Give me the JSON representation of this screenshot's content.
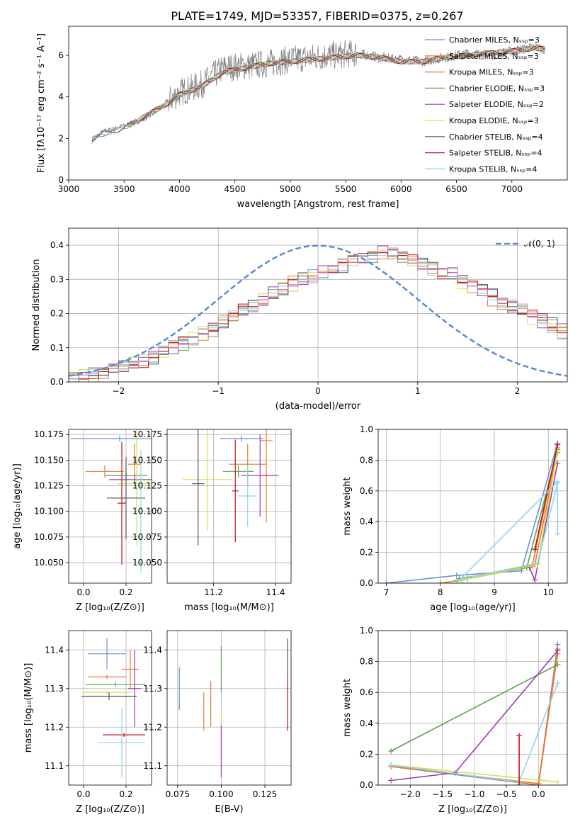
{
  "figure": {
    "title": "PLATE=1749, MJD=53357, FIBERID=0375, z=0.267"
  },
  "colors": [
    "#6b8fd6",
    "#f07a2a",
    "#e0793a",
    "#5aa34e",
    "#a03bb3",
    "#cbe64f",
    "#555555",
    "#c0141c",
    "#8fd6e6",
    "#e684bd"
  ],
  "chart_data": [
    {
      "id": "spectrum",
      "type": "line",
      "xlabel": "wavelength [Angstrom, rest frame]",
      "ylabel": "Flux [fλ10⁻¹⁷ erg cm⁻² s⁻¹ A⁻¹]",
      "xlim": [
        3000,
        7500
      ],
      "ylim": [
        0,
        7.4
      ],
      "xticks": [
        "3000",
        "3500",
        "4000",
        "4500",
        "5000",
        "5500",
        "6000",
        "6500",
        "7000"
      ],
      "yticks": [
        "0",
        "2",
        "4",
        "6"
      ],
      "grid": false,
      "legend_position": "top-right",
      "legend": [
        "Chabrier MILES, Nₛₛₚ=3",
        "Salpeter MILES, Nₛₛₚ=3",
        "Kroupa MILES, Nₛₛₚ=3",
        "Chabrier ELODIE, Nₛₛₚ=3",
        "Salpeter ELODIE, Nₛₛₚ=2",
        "Kroupa ELODIE, Nₛₛₚ=3",
        "Chabrier STELIB, Nₛₛₚ=4",
        "Salpeter STELIB, Nₛₛₚ=4",
        "Kroupa STELIB, Nₛₛₚ=4"
      ],
      "data_curve": {
        "x": [
          3210,
          3300,
          3500,
          3700,
          3900,
          4000,
          4200,
          4400,
          4600,
          4800,
          5000,
          5200,
          5400,
          5600,
          5800,
          6000,
          6200,
          6400,
          6600,
          6800,
          7000,
          7200,
          7300
        ],
        "y": [
          1.9,
          2.3,
          2.6,
          3.0,
          3.8,
          4.2,
          4.6,
          5.4,
          5.5,
          5.6,
          5.8,
          5.9,
          6.0,
          6.1,
          5.9,
          5.8,
          5.7,
          5.9,
          6.1,
          6.0,
          6.2,
          6.4,
          6.3
        ]
      },
      "model_curve": {
        "x": [
          3210,
          3300,
          3500,
          3700,
          3900,
          4000,
          4200,
          4400,
          4600,
          4800,
          5000,
          5200,
          5400,
          5600,
          5800,
          6000,
          6200,
          6400,
          6600,
          6800,
          7000,
          7200,
          7300
        ],
        "y": [
          1.95,
          2.2,
          2.5,
          3.1,
          3.7,
          4.1,
          4.5,
          5.2,
          5.4,
          5.6,
          5.7,
          5.8,
          5.9,
          6.0,
          5.9,
          5.7,
          5.7,
          5.9,
          6.0,
          6.1,
          6.2,
          6.35,
          6.3
        ]
      }
    },
    {
      "id": "residual-histogram",
      "type": "line",
      "xlabel": "(data-model)/error",
      "ylabel": "Normed distribution",
      "xlim": [
        -2.5,
        2.5
      ],
      "ylim": [
        0,
        0.45
      ],
      "xticks": [
        "−2",
        "−1",
        "0",
        "1",
        "2"
      ],
      "yticks": [
        "0.0",
        "0.1",
        "0.2",
        "0.3",
        "0.4"
      ],
      "grid": true,
      "legend_position": "top-right",
      "legend": [
        "𝒩(0, 1)"
      ],
      "bin_width": 0.1,
      "bin_start": -2.5,
      "series": [
        {
          "values": [
            0.02,
            0.02,
            0.03,
            0.03,
            0.04,
            0.05,
            0.05,
            0.06,
            0.07,
            0.09,
            0.1,
            0.11,
            0.12,
            0.14,
            0.15,
            0.17,
            0.19,
            0.2,
            0.22,
            0.24,
            0.25,
            0.27,
            0.28,
            0.3,
            0.31,
            0.32,
            0.33,
            0.34,
            0.35,
            0.36,
            0.37,
            0.38,
            0.38,
            0.37,
            0.36,
            0.35,
            0.34,
            0.33,
            0.32,
            0.3,
            0.28,
            0.27,
            0.26,
            0.24,
            0.22,
            0.21,
            0.2,
            0.18,
            0.17,
            0.16
          ]
        },
        {
          "values": [
            0.02,
            0.02,
            0.02,
            0.03,
            0.04,
            0.04,
            0.05,
            0.06,
            0.08,
            0.09,
            0.1,
            0.12,
            0.13,
            0.14,
            0.16,
            0.17,
            0.18,
            0.21,
            0.22,
            0.23,
            0.26,
            0.27,
            0.29,
            0.3,
            0.31,
            0.33,
            0.34,
            0.35,
            0.36,
            0.37,
            0.38,
            0.39,
            0.38,
            0.37,
            0.36,
            0.34,
            0.33,
            0.32,
            0.31,
            0.29,
            0.28,
            0.26,
            0.25,
            0.23,
            0.22,
            0.2,
            0.19,
            0.17,
            0.16,
            0.15
          ]
        },
        {
          "values": [
            0.02,
            0.03,
            0.03,
            0.03,
            0.04,
            0.05,
            0.06,
            0.07,
            0.08,
            0.09,
            0.11,
            0.12,
            0.13,
            0.15,
            0.16,
            0.18,
            0.19,
            0.21,
            0.22,
            0.24,
            0.25,
            0.27,
            0.28,
            0.3,
            0.31,
            0.32,
            0.33,
            0.35,
            0.36,
            0.37,
            0.37,
            0.38,
            0.37,
            0.37,
            0.35,
            0.35,
            0.33,
            0.32,
            0.3,
            0.29,
            0.27,
            0.26,
            0.24,
            0.23,
            0.21,
            0.2,
            0.18,
            0.17,
            0.15,
            0.14
          ]
        }
      ]
    },
    {
      "id": "age-vs-z",
      "type": "scatter",
      "xlabel": "Z [log₁₀(Z/Z⊙)]",
      "ylabel": "age  [log₁₀(age/yr)]",
      "xlim": [
        -0.07,
        0.32
      ],
      "ylim": [
        10.03,
        10.18
      ],
      "xticks": [
        "0.0",
        "0.2"
      ],
      "yticks": [
        "10.050",
        "10.075",
        "10.100",
        "10.125",
        "10.150",
        "10.175"
      ],
      "grid": true,
      "points": [
        {
          "x": 0.17,
          "y": 10.171,
          "xerr": 0.23,
          "yerr": 0.003
        },
        {
          "x": 0.24,
          "y": 10.146,
          "xerr": 0.03,
          "yerr": 0.02
        },
        {
          "x": 0.1,
          "y": 10.139,
          "xerr": 0.09,
          "yerr": 0.006
        },
        {
          "x": 0.2,
          "y": 10.135,
          "xerr": 0.1,
          "yerr": 0.006
        },
        {
          "x": 0.24,
          "y": 10.131,
          "xerr": 0.12,
          "yerr": 0.005
        },
        {
          "x": 0.25,
          "y": 10.127,
          "xerr": 0.09,
          "yerr": 0.06
        },
        {
          "x": 0.2,
          "y": 10.113,
          "xerr": 0.09,
          "yerr": 0.04
        },
        {
          "x": 0.18,
          "y": 10.108,
          "xerr": 0.02,
          "yerr": 0.06
        },
        {
          "x": 0.27,
          "y": 10.1,
          "xerr": 0.02,
          "yerr": 0.06
        }
      ]
    },
    {
      "id": "age-vs-mass",
      "type": "scatter",
      "xlabel": "mass [log₁₀(M/M⊙)]",
      "ylabel": "",
      "xlim": [
        11.05,
        11.45
      ],
      "ylim": [
        10.03,
        10.18
      ],
      "xticks": [
        "11.2",
        "11.4"
      ],
      "yticks": [
        "10.050",
        "10.075",
        "10.100",
        "10.125",
        "10.150",
        "10.175"
      ],
      "grid": true,
      "points": [
        {
          "x": 11.29,
          "y": 10.171,
          "xerr": 0.07,
          "yerr": 0.003
        },
        {
          "x": 11.37,
          "y": 10.169,
          "xerr": 0.02,
          "yerr": 0.08
        },
        {
          "x": 11.31,
          "y": 10.146,
          "xerr": 0.06,
          "yerr": 0.02
        },
        {
          "x": 11.28,
          "y": 10.139,
          "xerr": 0.05,
          "yerr": 0.006
        },
        {
          "x": 11.35,
          "y": 10.135,
          "xerr": 0.06,
          "yerr": 0.04
        },
        {
          "x": 11.18,
          "y": 10.131,
          "xerr": 0.08,
          "yerr": 0.05
        },
        {
          "x": 11.15,
          "y": 10.127,
          "xerr": 0.02,
          "yerr": 0.06
        },
        {
          "x": 11.27,
          "y": 10.12,
          "xerr": 0.01,
          "yerr": 0.05
        },
        {
          "x": 11.31,
          "y": 10.115,
          "xerr": 0.03,
          "yerr": 0.03
        }
      ]
    },
    {
      "id": "mass-weight-vs-age",
      "type": "line",
      "xlabel": "age  [log₁₀(age/yr)]",
      "ylabel": "mass weight",
      "xlim": [
        6.85,
        10.35
      ],
      "ylim": [
        0,
        1
      ],
      "xticks": [
        "7",
        "8",
        "9",
        "10"
      ],
      "yticks": [
        "0.0",
        "0.2",
        "0.4",
        "0.6",
        "0.8",
        "1.0"
      ],
      "grid": true,
      "series": [
        {
          "x": [
            7.0,
            8.3,
            9.5,
            10.17
          ],
          "y": [
            0.0,
            0.05,
            0.08,
            0.91
          ]
        },
        {
          "x": [
            8.0,
            8.4,
            9.7,
            10.17
          ],
          "y": [
            0.0,
            0.02,
            0.11,
            0.88
          ]
        },
        {
          "x": [
            8.3,
            8.5,
            9.75,
            10.17
          ],
          "y": [
            0.02,
            0.03,
            0.12,
            0.85
          ]
        },
        {
          "x": [
            8.35,
            9.6,
            10.17
          ],
          "y": [
            0.03,
            0.1,
            0.87
          ]
        },
        {
          "x": [
            9.65,
            9.75,
            10.17
          ],
          "y": [
            0.1,
            0.02,
            0.78
          ]
        },
        {
          "x": [
            8.4,
            9.8,
            10.17
          ],
          "y": [
            0.02,
            0.12,
            0.86
          ]
        },
        {
          "x": [
            8.3,
            9.8,
            10.17
          ],
          "y": [
            0.02,
            0.13,
            0.65
          ]
        },
        {
          "x": [
            9.75,
            10.17
          ],
          "y": [
            0.22,
            0.9
          ]
        },
        {
          "x": [
            8.3,
            10.17,
            10.17
          ],
          "y": [
            0.0,
            0.66,
            0.32
          ]
        }
      ]
    },
    {
      "id": "mass-vs-z",
      "type": "scatter",
      "xlabel": "Z [log₁₀(Z/Z⊙)]",
      "ylabel": "mass [log₁₀(M/M⊙)]",
      "xlim": [
        -0.07,
        0.32
      ],
      "ylim": [
        11.05,
        11.45
      ],
      "xticks": [
        "0.0",
        "0.2"
      ],
      "yticks": [
        "11.1",
        "11.2",
        "11.3",
        "11.4"
      ],
      "grid": true,
      "points": [
        {
          "x": 0.11,
          "y": 11.39,
          "xerr": 0.09,
          "yerr": 0.04
        },
        {
          "x": 0.22,
          "y": 11.35,
          "xerr": 0.04,
          "yerr": 0.05
        },
        {
          "x": 0.11,
          "y": 11.33,
          "xerr": 0.09,
          "yerr": 0.005
        },
        {
          "x": 0.15,
          "y": 11.31,
          "xerr": 0.14,
          "yerr": 0.005
        },
        {
          "x": 0.24,
          "y": 11.3,
          "xerr": 0.03,
          "yerr": 0.1
        },
        {
          "x": 0.11,
          "y": 11.29,
          "xerr": 0.12,
          "yerr": 0.005
        },
        {
          "x": 0.12,
          "y": 11.28,
          "xerr": 0.13,
          "yerr": 0.01
        },
        {
          "x": 0.19,
          "y": 11.18,
          "xerr": 0.1,
          "yerr": 0.005
        },
        {
          "x": 0.18,
          "y": 11.16,
          "xerr": 0.11,
          "yerr": 0.09
        }
      ]
    },
    {
      "id": "mass-vs-ebv",
      "type": "scatter",
      "xlabel": "E(B-V)",
      "ylabel": "",
      "xlim": [
        0.069,
        0.14
      ],
      "ylim": [
        11.05,
        11.45
      ],
      "xticks": [
        "0.075",
        "0.100",
        "0.125"
      ],
      "yticks": [
        "11.1",
        "11.2",
        "11.3",
        "11.4"
      ],
      "grid": true,
      "points": [
        {
          "x": 0.076,
          "y": 11.3,
          "xerr": 0,
          "yerr": 0.055
        },
        {
          "x": 0.09,
          "y": 11.24,
          "xerr": 0,
          "yerr": 0.05
        },
        {
          "x": 0.094,
          "y": 11.26,
          "xerr": 0,
          "yerr": 0.06
        },
        {
          "x": 0.1,
          "y": 11.35,
          "xerr": 0,
          "yerr": 0.06
        },
        {
          "x": 0.1,
          "y": 11.14,
          "xerr": 0,
          "yerr": 0.07
        },
        {
          "x": 0.1,
          "y": 11.22,
          "xerr": 0,
          "yerr": 0.015
        },
        {
          "x": 0.138,
          "y": 11.38,
          "xerr": 0,
          "yerr": 0.05
        },
        {
          "x": 0.138,
          "y": 11.26,
          "xerr": 0,
          "yerr": 0.07
        }
      ]
    },
    {
      "id": "mass-weight-vs-z",
      "type": "line",
      "xlabel": "Z [log₁₀(Z/Z⊙)]",
      "ylabel": "mass weight",
      "xlim": [
        -2.5,
        0.45
      ],
      "ylim": [
        0,
        1
      ],
      "xticks": [
        "−2.0",
        "−1.5",
        "−1.0",
        "−0.5",
        "0.0"
      ],
      "yticks": [
        "0.0",
        "0.2",
        "0.4",
        "0.6",
        "0.8",
        "1.0"
      ],
      "grid": true,
      "series": [
        {
          "x": [
            -2.3,
            0.0,
            0.3
          ],
          "y": [
            0.12,
            0.0,
            0.91
          ]
        },
        {
          "x": [
            -2.3,
            -0.0,
            0.3
          ],
          "y": [
            0.12,
            0.01,
            0.88
          ]
        },
        {
          "x": [
            -2.3,
            0.0,
            0.3
          ],
          "y": [
            0.13,
            0.0,
            0.85
          ]
        },
        {
          "x": [
            -2.3,
            0.3
          ],
          "y": [
            0.22,
            0.78
          ]
        },
        {
          "x": [
            -2.3,
            -1.3,
            0.3
          ],
          "y": [
            0.03,
            0.08,
            0.87
          ]
        },
        {
          "x": [
            -2.3,
            0.3
          ],
          "y": [
            0.13,
            0.02
          ]
        },
        {
          "x": [
            -2.3,
            -0.3,
            0.3
          ],
          "y": [
            0.13,
            0.02,
            0.66
          ]
        },
        {
          "x": [
            -0.3,
            -0.3
          ],
          "y": [
            0.0,
            0.32
          ]
        }
      ]
    }
  ]
}
